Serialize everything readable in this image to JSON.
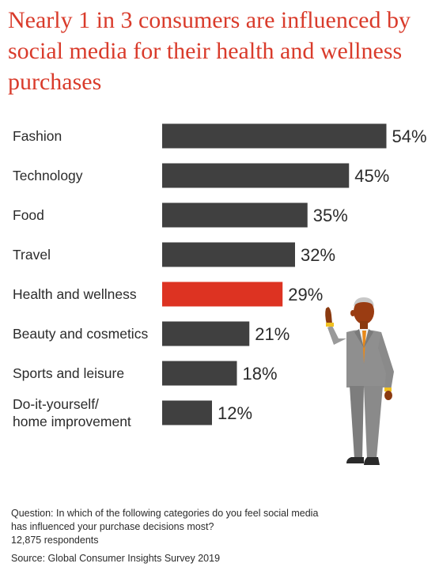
{
  "title": "Nearly 1 in 3 consumers are influenced by social media for their health and wellness purchases",
  "colors": {
    "bar": "#404040",
    "highlight": "#dd3322",
    "title": "#d93b2b",
    "text": "#2b2b2b"
  },
  "chart_data": {
    "type": "bar",
    "orientation": "horizontal",
    "categories": [
      [
        "Fashion"
      ],
      [
        "Technology"
      ],
      [
        "Food"
      ],
      [
        "Travel"
      ],
      [
        "Health and wellness"
      ],
      [
        "Beauty and cosmetics"
      ],
      [
        "Sports and leisure"
      ],
      [
        "Do-it-yourself/",
        "home improvement"
      ]
    ],
    "values": [
      54,
      45,
      35,
      32,
      29,
      21,
      18,
      12
    ],
    "value_labels": [
      "54%",
      "45%",
      "35%",
      "32%",
      "29%",
      "21%",
      "18%",
      "12%"
    ],
    "highlight_index": 4,
    "unit": "%"
  },
  "footnote": {
    "question_line1": "Question: In which of the following categories do you feel social media",
    "question_line2": "has influenced your purchase decisions most?",
    "respondents": "12,875 respondents",
    "source": "Source: Global Consumer Insights Survey 2019"
  },
  "illustration": "businessman-pointing-up"
}
